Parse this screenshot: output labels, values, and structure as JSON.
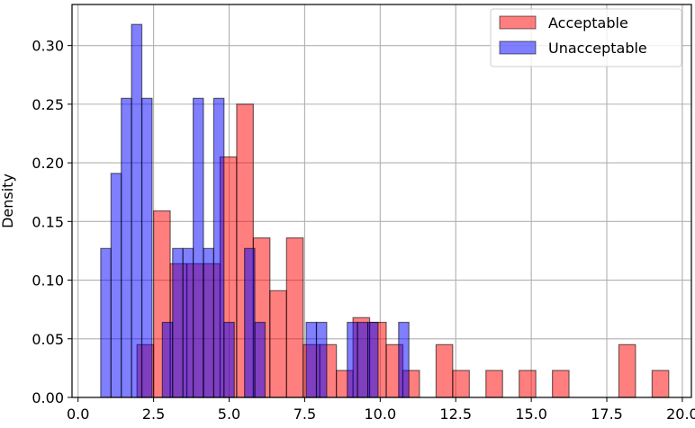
{
  "chart_data": {
    "type": "bar",
    "subtype": "overlapping-histogram",
    "title": "",
    "xlabel": "",
    "ylabel": "Density",
    "xlim": [
      -0.2,
      20.3
    ],
    "ylim": [
      0,
      0.335
    ],
    "x_ticks": [
      0.0,
      2.5,
      5.0,
      7.5,
      10.0,
      12.5,
      15.0,
      17.5,
      20.0
    ],
    "x_tick_labels": [
      "0.0",
      "2.5",
      "5.0",
      "7.5",
      "10.0",
      "12.5",
      "15.0",
      "17.5",
      "20.0"
    ],
    "y_ticks": [
      0.0,
      0.05,
      0.1,
      0.15,
      0.2,
      0.25,
      0.3
    ],
    "y_tick_labels": [
      "0.00",
      "0.05",
      "0.10",
      "0.15",
      "0.20",
      "0.25",
      "0.30"
    ],
    "grid": true,
    "legend_position": "top-right",
    "series": [
      {
        "name": "Acceptable",
        "color": "#ff0000",
        "bin_width": 0.55,
        "bin_starts": [
          1.95,
          2.5,
          3.05,
          3.6,
          4.15,
          4.7,
          5.25,
          5.8,
          6.35,
          6.9,
          7.45,
          8.0,
          8.55,
          9.1,
          9.65,
          10.2,
          10.75,
          11.85,
          12.4,
          13.5,
          14.6,
          15.7,
          17.9,
          19.0
        ],
        "values": [
          0.045,
          0.159,
          0.114,
          0.114,
          0.114,
          0.205,
          0.25,
          0.136,
          0.091,
          0.136,
          0.045,
          0.045,
          0.023,
          0.068,
          0.064,
          0.045,
          0.023,
          0.045,
          0.023,
          0.023,
          0.023,
          0.023,
          0.045,
          0.023
        ]
      },
      {
        "name": "Unacceptable",
        "color": "#0000ff",
        "bin_width": 0.34,
        "bin_starts": [
          0.75,
          1.09,
          1.43,
          1.77,
          2.11,
          2.45,
          2.79,
          3.13,
          3.47,
          3.81,
          4.15,
          4.49,
          4.83,
          5.17,
          5.51,
          5.85,
          6.19,
          6.53,
          6.87,
          7.21,
          7.55,
          7.89,
          8.23,
          8.57,
          8.91,
          9.25,
          9.59,
          9.93,
          10.27,
          10.61
        ],
        "values": [
          0.127,
          0.191,
          0.255,
          0.318,
          0.255,
          0.0,
          0.064,
          0.127,
          0.127,
          0.255,
          0.127,
          0.255,
          0.064,
          0.0,
          0.127,
          0.064,
          0.0,
          0.0,
          0.0,
          0.0,
          0.064,
          0.064,
          0.0,
          0.0,
          0.064,
          0.064,
          0.064,
          0.0,
          0.0,
          0.064
        ]
      }
    ]
  }
}
